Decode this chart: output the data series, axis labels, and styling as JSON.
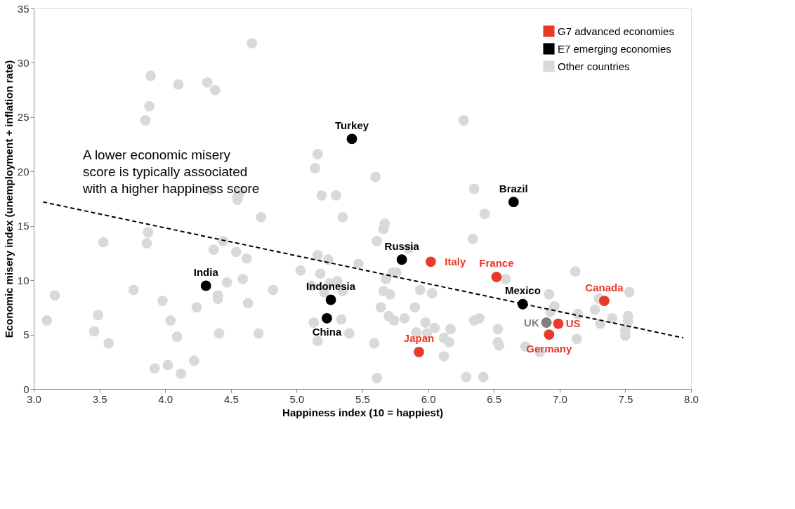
{
  "chart_data": {
    "type": "scatter",
    "xlabel": "Happiness index (10 = happiest)",
    "ylabel": "Economic misery index (unemployment + inflation rate)",
    "xlim": [
      3.0,
      8.0
    ],
    "ylim": [
      0,
      35
    ],
    "xticks": [
      {
        "value": 3,
        "label": "3.0"
      },
      3.5,
      {
        "value": 4,
        "label": "4.0"
      },
      4.5,
      {
        "value": 5,
        "label": "5.0"
      },
      5.5,
      {
        "value": 6,
        "label": "6.0"
      },
      6.5,
      {
        "value": 7,
        "label": "7.0"
      },
      7.5,
      {
        "value": 8,
        "label": "8.0"
      }
    ],
    "yticks": [
      0,
      5,
      10,
      15,
      20,
      25,
      30,
      35
    ],
    "grid": false,
    "legend": "top right",
    "marker": "circle",
    "series": [
      {
        "name": "G7 advanced economies",
        "color": "#e8392a",
        "x": [
          6.02,
          6.52,
          7.34,
          6.99,
          6.92,
          5.93
        ],
        "values": [
          11.7,
          10.3,
          8.1,
          6.0,
          5.0,
          3.4
        ]
      },
      {
        "name": "E7 emerging economies",
        "color": "#000000",
        "x": [
          5.42,
          6.65,
          5.8,
          4.31,
          5.26,
          5.23,
          6.72
        ],
        "values": [
          23.0,
          17.2,
          11.9,
          9.5,
          8.2,
          6.5,
          7.8
        ]
      },
      {
        "name": "Other countries",
        "color": "#d9d9d9",
        "x": [
          4.66,
          3.89,
          4.1,
          4.32,
          4.38,
          3.88,
          3.85,
          6.27,
          5.16,
          5.14,
          5.6,
          5.19,
          5.3,
          6.35,
          4.35,
          4.57,
          4.55,
          4.55,
          4.73,
          3.87,
          3.53,
          3.86,
          4.44,
          4.37,
          4.54,
          4.62,
          5.03,
          4.47,
          4.59,
          3.76,
          3.16,
          3.98,
          4.4,
          4.4,
          4.24,
          4.82,
          4.63,
          3.1,
          3.49,
          4.04,
          3.46,
          3.57,
          4.09,
          4.41,
          4.71,
          4.22,
          3.92,
          4.02,
          4.12,
          5.35,
          5.67,
          5.66,
          5.61,
          6.43,
          6.34,
          5.85,
          5.16,
          5.24,
          5.47,
          5.18,
          5.73,
          5.76,
          5.68,
          5.11,
          5.25,
          5.31,
          5.35,
          5.21,
          5.66,
          5.71,
          5.94,
          6.03,
          5.64,
          5.9,
          5.7,
          5.74,
          5.82,
          5.34,
          5.13,
          5.98,
          6.05,
          6.17,
          5.4,
          5.91,
          5.99,
          6.12,
          6.16,
          5.16,
          5.59,
          6.12,
          5.61,
          6.29,
          6.42,
          6.35,
          6.39,
          6.53,
          6.53,
          6.54,
          7.12,
          6.59,
          6.92,
          6.96,
          6.93,
          7.53,
          7.27,
          7.31,
          7.4,
          7.14,
          7.52,
          7.52,
          7.5,
          7.5,
          7.13,
          6.74,
          6.85,
          7.3
        ],
        "values": [
          31.8,
          28.8,
          28.0,
          28.2,
          27.5,
          26.0,
          24.7,
          24.7,
          21.6,
          20.3,
          19.5,
          17.8,
          17.8,
          18.4,
          18.3,
          18.1,
          17.7,
          17.4,
          15.8,
          14.4,
          13.5,
          13.4,
          13.6,
          12.8,
          12.6,
          12.0,
          10.9,
          9.8,
          10.1,
          9.1,
          8.6,
          8.1,
          8.6,
          8.3,
          7.5,
          9.1,
          7.9,
          6.3,
          6.8,
          6.3,
          5.3,
          4.2,
          4.8,
          5.1,
          5.1,
          2.6,
          1.9,
          2.2,
          1.4,
          15.8,
          15.2,
          14.7,
          13.6,
          16.1,
          13.8,
          12.9,
          12.3,
          11.9,
          11.5,
          10.6,
          10.7,
          10.7,
          10.1,
          9.5,
          9.7,
          9.9,
          9.0,
          8.9,
          9.0,
          8.7,
          9.1,
          8.8,
          7.5,
          7.5,
          6.7,
          6.3,
          6.5,
          6.4,
          6.1,
          6.1,
          5.6,
          5.5,
          5.1,
          5.2,
          5.1,
          4.7,
          4.3,
          4.4,
          4.2,
          3.0,
          1.0,
          1.1,
          1.1,
          6.3,
          6.5,
          5.5,
          4.3,
          4.0,
          10.8,
          10.1,
          8.7,
          7.6,
          7.1,
          8.9,
          7.3,
          6.0,
          6.5,
          6.9,
          6.7,
          6.2,
          5.4,
          4.9,
          4.6,
          3.9,
          3.4,
          8.3
        ]
      },
      {
        "color": "#808080",
        "x": [
          6.9
        ],
        "values": [
          6.1
        ]
      },
      {
        "type": "line",
        "color": "#000000",
        "line_style": "dashed",
        "marker": "none",
        "x": [
          3.07,
          7.94
        ],
        "values": [
          17.2,
          4.7
        ]
      }
    ],
    "annotations": [
      "A lower economic misery\nscore is typically associated\nwith a higher happiness score",
      {
        "text": "Italy",
        "x": 6.02,
        "y": 11.7
      },
      {
        "text": "France",
        "x": 6.52,
        "y": 10.3
      },
      {
        "text": "Canada",
        "x": 7.34,
        "y": 8.1
      },
      {
        "text": "US",
        "x": 6.99,
        "y": 6.0
      },
      {
        "text": "Germany",
        "x": 6.92,
        "y": 5.0
      },
      {
        "text": "Japan",
        "x": 5.93,
        "y": 3.4
      },
      {
        "text": "Turkey",
        "x": 5.42,
        "y": 23.0
      },
      {
        "text": "Brazil",
        "x": 6.65,
        "y": 17.2
      },
      {
        "text": "Russia",
        "x": 5.8,
        "y": 11.9
      },
      {
        "text": "India",
        "x": 4.31,
        "y": 9.5
      },
      {
        "text": "Indonesia",
        "x": 5.26,
        "y": 8.2
      },
      {
        "text": "China",
        "x": 5.23,
        "y": 6.5
      },
      {
        "text": "Mexico",
        "x": 6.72,
        "y": 7.8
      },
      {
        "text": "UK",
        "x": 6.9,
        "y": 6.1
      }
    ]
  }
}
